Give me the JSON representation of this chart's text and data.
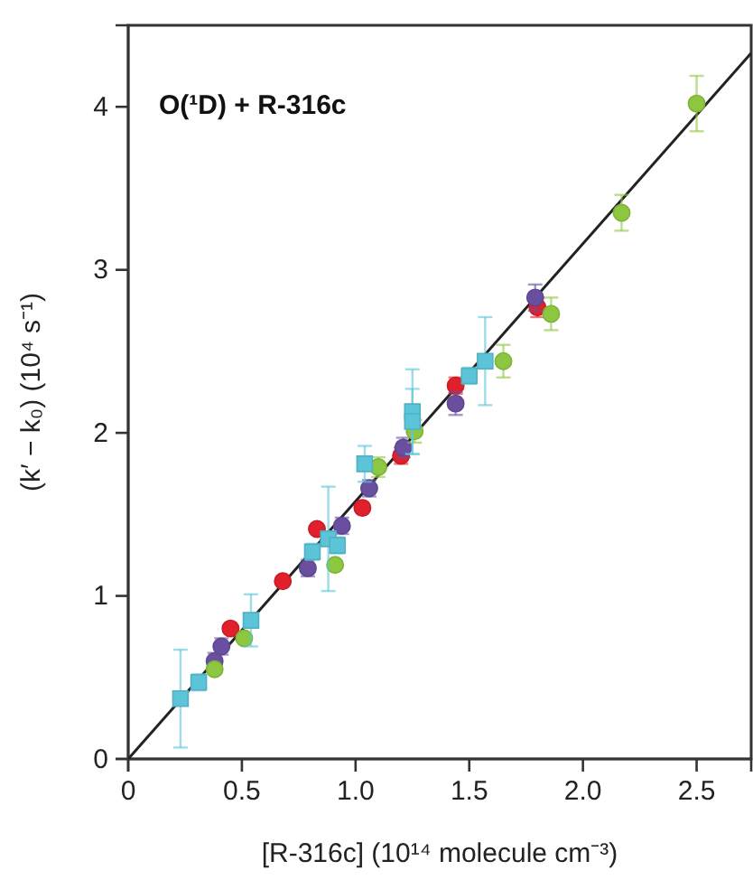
{
  "chart_data": {
    "type": "scatter",
    "xlabel": "[R-316c] (10¹⁴ molecule cm⁻³)",
    "ylabel": "(k′ − k₀) (10⁴ s⁻¹)",
    "annotations": [
      "O(¹D) + R-316c"
    ],
    "xlim": [
      0,
      2.74
    ],
    "ylim": [
      0,
      4.5
    ],
    "xticks": [
      0,
      0.5,
      {
        "value": 1,
        "label": "1.0"
      },
      1.5,
      {
        "value": 2,
        "label": "2.0"
      },
      2.5
    ],
    "yticks": [
      0,
      1,
      2,
      3,
      4
    ],
    "grid": false,
    "series": [
      {
        "type": "line",
        "color": "#222222",
        "line_style": "solid",
        "x": [
          0,
          2.74
        ],
        "values": [
          0,
          4.33
        ]
      },
      {
        "color": "#e0202a",
        "marker": "circle",
        "x": [
          0.45,
          0.68,
          0.83,
          1.03,
          1.2,
          1.44,
          1.8
        ],
        "values": [
          0.8,
          1.09,
          1.41,
          1.54,
          1.86,
          2.29,
          2.77
        ],
        "errors": [
          null,
          null,
          null,
          null,
          0.05,
          0.05,
          0.06
        ]
      },
      {
        "color": "#6a4fa0",
        "marker": "circle",
        "x": [
          0.38,
          0.41,
          0.79,
          0.94,
          1.06,
          1.21,
          1.44,
          1.79
        ],
        "values": [
          0.6,
          0.69,
          1.17,
          1.43,
          1.66,
          1.91,
          2.18,
          2.83
        ],
        "errors": [
          0.05,
          0.05,
          0.05,
          0.05,
          0.05,
          0.06,
          0.07,
          0.08
        ]
      },
      {
        "color": "#8dc63f",
        "marker": "circle",
        "x": [
          0.38,
          0.51,
          0.91,
          1.1,
          1.26,
          1.65,
          1.86,
          2.17,
          2.5
        ],
        "values": [
          0.55,
          0.74,
          1.19,
          1.79,
          2.01,
          2.44,
          2.73,
          3.35,
          4.02
        ],
        "errors": [
          null,
          null,
          null,
          0.06,
          0.07,
          0.1,
          0.1,
          0.11,
          0.17
        ]
      },
      {
        "color": "#5bc4d8",
        "marker": "square",
        "x": [
          0.23,
          0.31,
          0.54,
          0.81,
          0.88,
          0.92,
          1.04,
          1.25,
          1.25,
          1.5,
          1.57
        ],
        "values": [
          0.37,
          0.47,
          0.85,
          1.27,
          1.35,
          1.31,
          1.81,
          2.13,
          2.07,
          2.35,
          2.44
        ],
        "errors": [
          0.3,
          0.05,
          0.16,
          0.05,
          0.32,
          0.05,
          0.11,
          0.26,
          0.2,
          0.05,
          0.27
        ]
      }
    ]
  }
}
